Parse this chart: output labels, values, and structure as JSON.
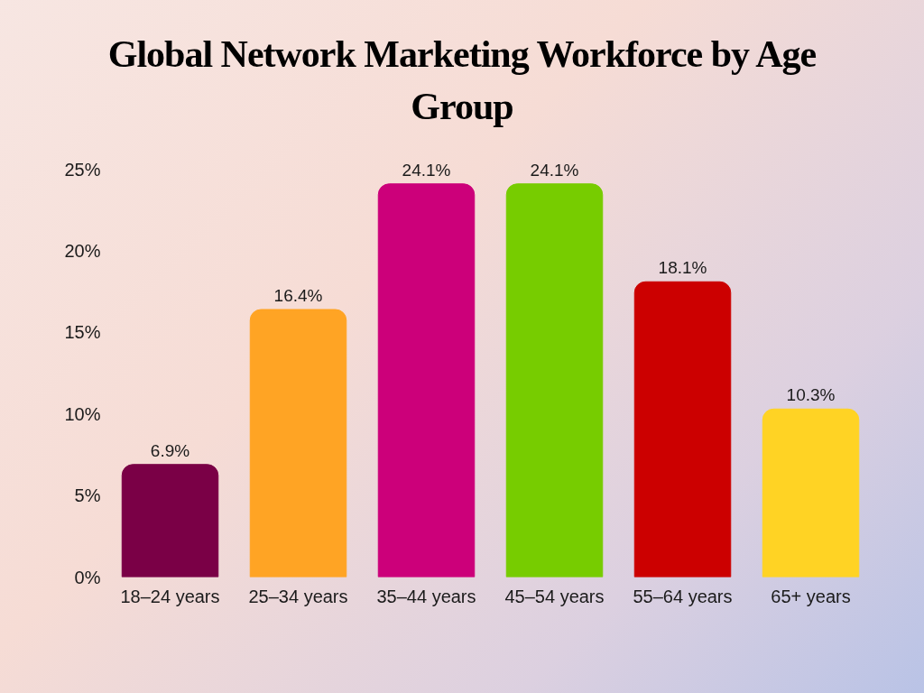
{
  "chart_data": {
    "type": "bar",
    "title": "Global Network Marketing Workforce by Age Group",
    "categories": [
      "18–24 years",
      "25–34 years",
      "35–44 years",
      "45–54 years",
      "55–64 years",
      "65+ years"
    ],
    "values": [
      6.9,
      16.4,
      24.1,
      24.1,
      18.1,
      10.3
    ],
    "colors": [
      "#7a0046",
      "#ffa424",
      "#cc007a",
      "#77cc00",
      "#cc0000",
      "#ffd324"
    ],
    "value_labels": [
      "6.9%",
      "16.4%",
      "24.1%",
      "24.1%",
      "18.1%",
      "10.3%"
    ],
    "ylim": [
      0,
      25
    ],
    "yticks": [
      {
        "value": 0,
        "label": "0%"
      },
      {
        "value": 5,
        "label": "5%"
      },
      {
        "value": 10,
        "label": "10%"
      },
      {
        "value": 15,
        "label": "15%"
      },
      {
        "value": 20,
        "label": "20%"
      },
      {
        "value": 25,
        "label": "25%"
      }
    ],
    "grid": false
  }
}
